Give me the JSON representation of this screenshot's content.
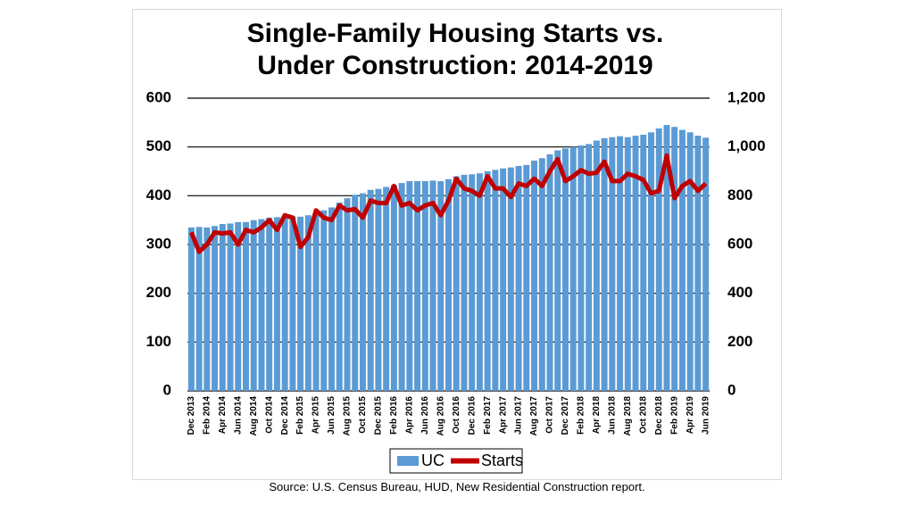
{
  "chart_data": {
    "type": "bar-line",
    "title": "Single-Family Housing Starts vs. Under Construction: 2014-2019",
    "source": "U.S. Census Bureau, HUD, New Residential Construction report.",
    "source_prefix": "Source:",
    "categories": [
      "Dec 2013",
      null,
      "Feb 2014",
      null,
      "Apr 2014",
      null,
      "Jun 2014",
      null,
      "Aug 2014",
      null,
      "Oct 2014",
      null,
      "Dec 2014",
      null,
      "Feb 2015",
      null,
      "Apr 2015",
      null,
      "Jun 2015",
      null,
      "Aug 2015",
      null,
      "Oct 2015",
      null,
      "Dec 2015",
      null,
      "Feb 2016",
      null,
      "Apr 2016",
      null,
      "Jun 2016",
      null,
      "Aug 2016",
      null,
      "Oct 2016",
      null,
      "Dec 2016",
      null,
      "Feb 2017",
      null,
      "Apr 2017",
      null,
      "Jun 2017",
      null,
      "Aug 2017",
      null,
      "Oct 2017",
      null,
      "Dec 2017",
      null,
      "Feb 2018",
      null,
      "Apr 2018",
      null,
      "Jun 2018",
      null,
      "Aug 2018",
      null,
      "Oct 2018",
      null,
      "Dec 2018",
      null,
      "Feb 2019",
      null,
      "Apr 2019",
      null,
      "Jun 2019"
    ],
    "series": [
      {
        "name": "UC",
        "type": "bar",
        "color": "#5b9bd5",
        "values": [
          335,
          336,
          335,
          338,
          342,
          343,
          346,
          346,
          350,
          352,
          355,
          356,
          357,
          358,
          357,
          360,
          364,
          370,
          376,
          386,
          395,
          402,
          405,
          412,
          414,
          418,
          422,
          426,
          430,
          430,
          430,
          431,
          430,
          434,
          440,
          443,
          444,
          446,
          450,
          453,
          456,
          458,
          461,
          463,
          472,
          477,
          485,
          493,
          497,
          500,
          503,
          506,
          513,
          518,
          520,
          522,
          520,
          523,
          525,
          530,
          538,
          545,
          541,
          535,
          530,
          523,
          519
        ]
      },
      {
        "name": "Starts",
        "type": "line",
        "axis": "y2",
        "color": "#c00000",
        "values": [
          650,
          570,
          600,
          650,
          645,
          650,
          600,
          660,
          650,
          670,
          700,
          660,
          720,
          710,
          590,
          630,
          740,
          710,
          700,
          760,
          740,
          745,
          710,
          780,
          770,
          770,
          840,
          760,
          770,
          740,
          760,
          770,
          720,
          780,
          870,
          830,
          820,
          800,
          880,
          830,
          830,
          795,
          850,
          840,
          870,
          840,
          900,
          950,
          860,
          880,
          905,
          890,
          895,
          940,
          860,
          860,
          890,
          880,
          865,
          810,
          820,
          965,
          790,
          840,
          860,
          820,
          850
        ]
      }
    ],
    "ylim": [
      0,
      600
    ],
    "yticks": [
      0,
      100,
      200,
      300,
      400,
      500,
      600
    ],
    "y2lim": [
      0,
      1200
    ],
    "y2ticks": [
      0,
      200,
      400,
      600,
      800,
      {
        "value": 1000,
        "label": "1,000"
      },
      {
        "value": 1200,
        "label": "1,200"
      }
    ],
    "grid": true,
    "legend": "bottom"
  }
}
